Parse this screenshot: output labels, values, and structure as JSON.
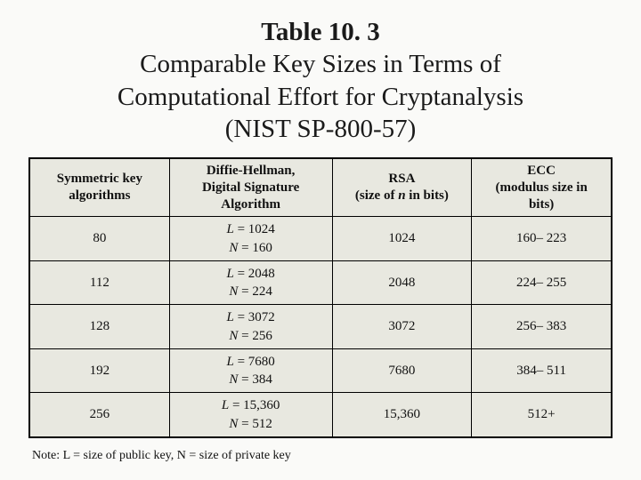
{
  "title": {
    "line1": "Table 10. 3",
    "line2": "Comparable Key Sizes in Terms of",
    "line3": "Computational Effort for Cryptanalysis",
    "line4": "(NIST SP-800-57)"
  },
  "table": {
    "background_color": "#e8e8e0",
    "border_color": "#000000",
    "header_fontsize": 15,
    "cell_fontsize": 15,
    "columns": [
      "Symmetric key algorithms",
      "Diffie-Hellman, Digital Signature Algorithm",
      "RSA (size of n in bits)",
      "ECC (modulus size in bits)"
    ],
    "rows": [
      {
        "sym": "80",
        "dh_L": "1024",
        "dh_N": "160",
        "rsa": "1024",
        "ecc": "160– 223"
      },
      {
        "sym": "112",
        "dh_L": "2048",
        "dh_N": "224",
        "rsa": "2048",
        "ecc": "224– 255"
      },
      {
        "sym": "128",
        "dh_L": "3072",
        "dh_N": "256",
        "rsa": "3072",
        "ecc": "256– 383"
      },
      {
        "sym": "192",
        "dh_L": "7680",
        "dh_N": "384",
        "rsa": "7680",
        "ecc": "384– 511"
      },
      {
        "sym": "256",
        "dh_L": "15,360",
        "dh_N": "512",
        "rsa": "15,360",
        "ecc": "512+"
      }
    ]
  },
  "note": "Note: L = size of public key, N = size of private key",
  "colors": {
    "page_background": "#fafaf8",
    "text": "#1a1a1a"
  },
  "typography": {
    "title_fontsize": 29,
    "note_fontsize": 14
  }
}
